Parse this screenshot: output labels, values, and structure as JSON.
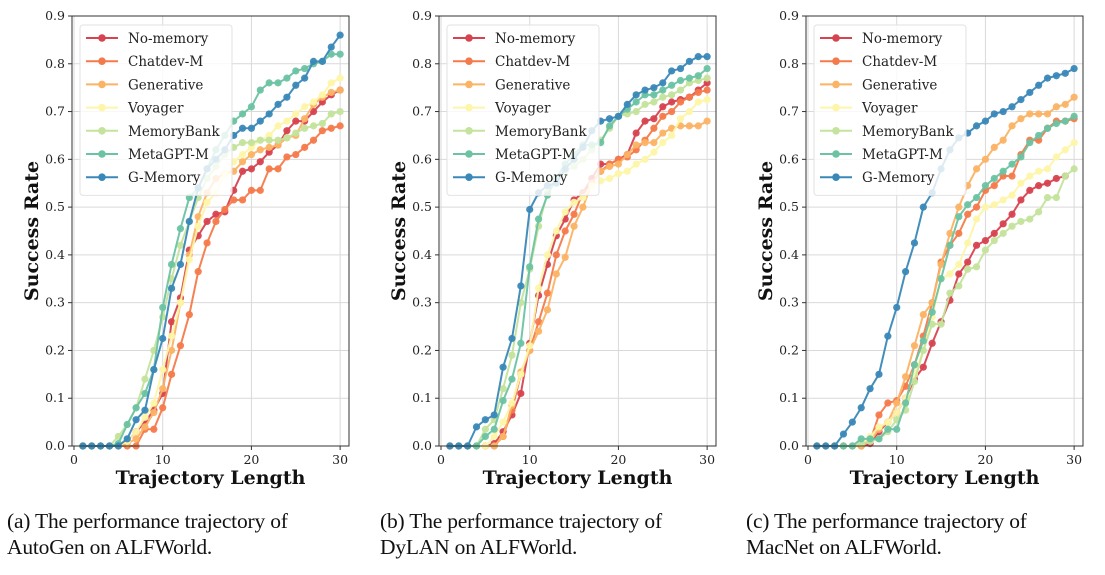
{
  "chart_data": [
    {
      "type": "line",
      "panel": "a",
      "title": "",
      "xlabel": "Trajectory Length",
      "ylabel": "Success Rate",
      "xlim": [
        0,
        31
      ],
      "ylim": [
        0.0,
        0.9
      ],
      "xticks": [
        0,
        10,
        20,
        30
      ],
      "yticks": [
        "0.0",
        "0.1",
        "0.2",
        "0.3",
        "0.4",
        "0.5",
        "0.6",
        "0.7",
        "0.8",
        "0.9"
      ],
      "grid": true,
      "legend_position": "top-left",
      "x": [
        1,
        2,
        3,
        4,
        5,
        6,
        7,
        8,
        9,
        10,
        11,
        12,
        13,
        14,
        15,
        16,
        17,
        18,
        19,
        20,
        21,
        22,
        23,
        24,
        25,
        26,
        27,
        28,
        29,
        30
      ],
      "series": [
        {
          "name": "No-memory",
          "color": "#d7434f",
          "values": [
            0,
            0,
            0,
            0,
            0,
            0.01,
            0.03,
            0.05,
            0.075,
            0.11,
            0.26,
            0.31,
            0.41,
            0.44,
            0.47,
            0.485,
            0.49,
            0.535,
            0.575,
            0.58,
            0.595,
            0.615,
            0.63,
            0.66,
            0.68,
            0.68,
            0.7,
            0.72,
            0.735,
            0.745
          ]
        },
        {
          "name": "Chatdev-M",
          "color": "#f47a4b",
          "values": [
            0,
            0,
            0,
            0,
            0,
            0,
            0,
            0.035,
            0.035,
            0.08,
            0.15,
            0.21,
            0.275,
            0.365,
            0.425,
            0.47,
            0.495,
            0.515,
            0.515,
            0.535,
            0.535,
            0.58,
            0.58,
            0.605,
            0.61,
            0.625,
            0.64,
            0.66,
            0.665,
            0.67
          ]
        },
        {
          "name": "Generative",
          "color": "#fbb365",
          "values": [
            0,
            0,
            0,
            0,
            0,
            0.005,
            0.015,
            0.04,
            0.07,
            0.12,
            0.2,
            0.3,
            0.4,
            0.48,
            0.53,
            0.56,
            0.57,
            0.575,
            0.595,
            0.61,
            0.62,
            0.625,
            0.63,
            0.645,
            0.65,
            0.685,
            0.715,
            0.73,
            0.74,
            0.745
          ]
        },
        {
          "name": "Voyager",
          "color": "#fdf6a8",
          "values": [
            0,
            0,
            0,
            0,
            0,
            0.01,
            0.03,
            0.06,
            0.09,
            0.16,
            0.23,
            0.3,
            0.39,
            0.46,
            0.51,
            0.53,
            0.57,
            0.595,
            0.61,
            0.625,
            0.64,
            0.65,
            0.67,
            0.68,
            0.695,
            0.71,
            0.72,
            0.735,
            0.76,
            0.77
          ]
        },
        {
          "name": "MemoryBank",
          "color": "#c4e39c",
          "values": [
            0,
            0,
            0,
            0,
            0.02,
            0.045,
            0.08,
            0.14,
            0.2,
            0.27,
            0.35,
            0.42,
            0.47,
            0.52,
            0.56,
            0.585,
            0.61,
            0.625,
            0.635,
            0.635,
            0.64,
            0.64,
            0.64,
            0.645,
            0.655,
            0.665,
            0.67,
            0.675,
            0.695,
            0.7
          ]
        },
        {
          "name": "MetaGPT-M",
          "color": "#6cc3a2",
          "values": [
            0,
            0,
            0,
            0,
            0.005,
            0.045,
            0.08,
            0.11,
            0.16,
            0.29,
            0.38,
            0.455,
            0.52,
            0.54,
            0.58,
            0.62,
            0.65,
            0.68,
            0.695,
            0.71,
            0.745,
            0.76,
            0.76,
            0.77,
            0.785,
            0.79,
            0.8,
            0.805,
            0.82,
            0.82
          ]
        },
        {
          "name": "G-Memory",
          "color": "#3a88b8",
          "values": [
            0,
            0,
            0,
            0,
            0,
            0.015,
            0.055,
            0.075,
            0.16,
            0.225,
            0.33,
            0.38,
            0.47,
            0.54,
            0.58,
            0.6,
            0.62,
            0.65,
            0.665,
            0.665,
            0.68,
            0.695,
            0.715,
            0.73,
            0.755,
            0.77,
            0.805,
            0.805,
            0.835,
            0.86
          ]
        }
      ]
    },
    {
      "type": "line",
      "panel": "b",
      "title": "",
      "xlabel": "Trajectory Length",
      "ylabel": "Success Rate",
      "xlim": [
        0,
        31
      ],
      "ylim": [
        0.0,
        0.9
      ],
      "xticks": [
        0,
        10,
        20,
        30
      ],
      "yticks": [
        "0.0",
        "0.1",
        "0.2",
        "0.3",
        "0.4",
        "0.5",
        "0.6",
        "0.7",
        "0.8",
        "0.9"
      ],
      "grid": true,
      "legend_position": "top-left",
      "x": [
        1,
        2,
        3,
        4,
        5,
        6,
        7,
        8,
        9,
        10,
        11,
        12,
        13,
        14,
        15,
        16,
        17,
        18,
        19,
        20,
        21,
        22,
        23,
        24,
        25,
        26,
        27,
        28,
        29,
        30
      ],
      "series": [
        {
          "name": "No-memory",
          "color": "#d7434f",
          "values": [
            0,
            0,
            0,
            0,
            0,
            0.005,
            0.03,
            0.065,
            0.11,
            0.215,
            0.315,
            0.38,
            0.44,
            0.475,
            0.515,
            0.53,
            0.56,
            0.59,
            0.59,
            0.6,
            0.61,
            0.655,
            0.68,
            0.685,
            0.71,
            0.72,
            0.725,
            0.73,
            0.745,
            0.76
          ]
        },
        {
          "name": "Chatdev-M",
          "color": "#f47a4b",
          "values": [
            0,
            0,
            0,
            0,
            0,
            0,
            0.02,
            0.075,
            0.15,
            0.2,
            0.26,
            0.32,
            0.4,
            0.45,
            0.485,
            0.53,
            0.55,
            0.575,
            0.59,
            0.6,
            0.605,
            0.62,
            0.64,
            0.665,
            0.69,
            0.7,
            0.72,
            0.73,
            0.74,
            0.745
          ]
        },
        {
          "name": "Generative",
          "color": "#fbb365",
          "values": [
            0,
            0,
            0,
            0,
            0,
            0,
            0.02,
            0.085,
            0.155,
            0.2,
            0.24,
            0.285,
            0.36,
            0.395,
            0.46,
            0.5,
            0.55,
            0.575,
            0.585,
            0.59,
            0.61,
            0.63,
            0.635,
            0.635,
            0.655,
            0.665,
            0.67,
            0.67,
            0.67,
            0.68
          ]
        },
        {
          "name": "Voyager",
          "color": "#fdf6a8",
          "values": [
            0,
            0,
            0,
            0,
            0,
            0.02,
            0.05,
            0.09,
            0.15,
            0.21,
            0.33,
            0.4,
            0.45,
            0.49,
            0.51,
            0.52,
            0.545,
            0.555,
            0.56,
            0.57,
            0.575,
            0.59,
            0.6,
            0.615,
            0.635,
            0.65,
            0.685,
            0.7,
            0.72,
            0.725
          ]
        },
        {
          "name": "MemoryBank",
          "color": "#c4e39c",
          "values": [
            0,
            0,
            0,
            0,
            0.035,
            0.055,
            0.12,
            0.19,
            0.3,
            0.37,
            0.46,
            0.53,
            0.56,
            0.575,
            0.585,
            0.6,
            0.62,
            0.64,
            0.665,
            0.69,
            0.695,
            0.7,
            0.715,
            0.72,
            0.73,
            0.735,
            0.745,
            0.76,
            0.765,
            0.77
          ]
        },
        {
          "name": "MetaGPT-M",
          "color": "#6cc3a2",
          "values": [
            0,
            0,
            0,
            0,
            0.02,
            0.035,
            0.095,
            0.14,
            0.215,
            0.375,
            0.475,
            0.525,
            0.56,
            0.59,
            0.61,
            0.63,
            0.63,
            0.635,
            0.67,
            0.69,
            0.705,
            0.72,
            0.735,
            0.735,
            0.745,
            0.755,
            0.765,
            0.77,
            0.775,
            0.79
          ]
        },
        {
          "name": "G-Memory",
          "color": "#3a88b8",
          "values": [
            0,
            0,
            0,
            0.04,
            0.055,
            0.065,
            0.165,
            0.225,
            0.335,
            0.495,
            0.53,
            0.545,
            0.55,
            0.58,
            0.6,
            0.625,
            0.66,
            0.68,
            0.685,
            0.69,
            0.715,
            0.735,
            0.745,
            0.75,
            0.76,
            0.785,
            0.79,
            0.805,
            0.815,
            0.815
          ]
        }
      ]
    },
    {
      "type": "line",
      "panel": "c",
      "title": "",
      "xlabel": "Trajectory Length",
      "ylabel": "Success Rate",
      "xlim": [
        0,
        31
      ],
      "ylim": [
        0.0,
        0.9
      ],
      "xticks": [
        0,
        10,
        20,
        30
      ],
      "yticks": [
        "0.0",
        "0.1",
        "0.2",
        "0.3",
        "0.4",
        "0.5",
        "0.6",
        "0.7",
        "0.8",
        "0.9"
      ],
      "grid": true,
      "legend_position": "top-left",
      "x": [
        1,
        2,
        3,
        4,
        5,
        6,
        7,
        8,
        9,
        10,
        11,
        12,
        13,
        14,
        15,
        16,
        17,
        18,
        19,
        20,
        21,
        22,
        23,
        24,
        25,
        26,
        27,
        28,
        29,
        30
      ],
      "series": [
        {
          "name": "No-memory",
          "color": "#d7434f",
          "values": [
            0,
            0,
            0,
            0,
            0,
            0,
            0.005,
            0.03,
            0.05,
            0.07,
            0.1,
            0.14,
            0.165,
            0.215,
            0.26,
            0.305,
            0.36,
            0.385,
            0.42,
            0.43,
            0.445,
            0.465,
            0.485,
            0.515,
            0.535,
            0.545,
            0.55,
            0.56,
            0.565,
            null
          ]
        },
        {
          "name": "Chatdev-M",
          "color": "#f47a4b",
          "values": [
            0,
            0,
            0,
            0,
            0,
            0,
            0.01,
            0.065,
            0.09,
            0.095,
            0.125,
            0.17,
            0.23,
            0.3,
            0.385,
            0.42,
            0.445,
            0.485,
            0.5,
            0.535,
            0.545,
            0.565,
            0.565,
            0.61,
            0.64,
            0.64,
            0.665,
            0.68,
            0.68,
            0.685
          ]
        },
        {
          "name": "Generative",
          "color": "#fbb365",
          "values": [
            0,
            0,
            0,
            0,
            0,
            0,
            0.01,
            0.035,
            0.05,
            0.09,
            0.145,
            0.21,
            0.275,
            0.3,
            0.38,
            0.445,
            0.5,
            0.545,
            0.58,
            0.6,
            0.625,
            0.64,
            0.67,
            0.685,
            0.695,
            0.695,
            0.695,
            0.71,
            0.715,
            0.73
          ]
        },
        {
          "name": "Voyager",
          "color": "#fdf6a8",
          "values": [
            0,
            0,
            0,
            0,
            0,
            0.005,
            0.02,
            0.04,
            0.05,
            0.07,
            0.1,
            0.15,
            0.2,
            0.27,
            0.35,
            0.36,
            0.38,
            0.425,
            0.475,
            0.5,
            0.505,
            0.515,
            0.525,
            0.55,
            0.565,
            0.575,
            0.58,
            0.605,
            0.62,
            0.635
          ]
        },
        {
          "name": "MemoryBank",
          "color": "#c4e39c",
          "values": [
            0,
            0,
            0,
            0,
            0,
            0.005,
            0.01,
            0.015,
            0.03,
            0.055,
            0.075,
            0.135,
            0.2,
            0.255,
            0.255,
            0.32,
            0.335,
            0.37,
            0.375,
            0.41,
            0.43,
            0.445,
            0.46,
            0.47,
            0.475,
            0.49,
            0.52,
            0.52,
            0.565,
            0.58
          ]
        },
        {
          "name": "MetaGPT-M",
          "color": "#6cc3a2",
          "values": [
            0,
            0,
            0,
            0,
            0,
            0.015,
            0.015,
            0.015,
            0.035,
            0.035,
            0.09,
            0.17,
            0.22,
            0.28,
            0.35,
            0.42,
            0.48,
            0.505,
            0.52,
            0.545,
            0.56,
            0.575,
            0.59,
            0.605,
            0.635,
            0.65,
            0.665,
            0.675,
            0.68,
            0.69
          ]
        },
        {
          "name": "G-Memory",
          "color": "#3a88b8",
          "values": [
            0,
            0,
            0,
            0.025,
            0.05,
            0.08,
            0.12,
            0.15,
            0.23,
            0.29,
            0.365,
            0.425,
            0.5,
            0.53,
            0.58,
            0.62,
            0.645,
            0.655,
            0.67,
            0.68,
            0.695,
            0.7,
            0.71,
            0.725,
            0.74,
            0.755,
            0.77,
            0.775,
            0.78,
            0.79
          ]
        }
      ]
    }
  ],
  "captions": [
    {
      "line1": "(a) The performance trajectory of",
      "line2": "AutoGen on ALFWorld."
    },
    {
      "line1": "(b) The performance trajectory of",
      "line2": "DyLAN on ALFWorld."
    },
    {
      "line1": "(c) The performance trajectory of",
      "line2": "MacNet on ALFWorld."
    }
  ]
}
